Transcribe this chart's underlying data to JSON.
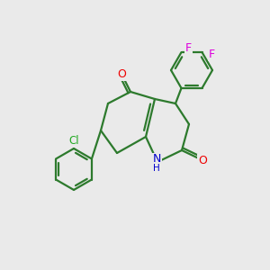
{
  "background_color": "#eaeaea",
  "bond_color": "#2d7a2d",
  "atom_colors": {
    "O": "#ee0000",
    "N": "#0000cc",
    "Cl": "#22aa22",
    "F": "#dd00dd"
  },
  "figsize": [
    3.0,
    3.0
  ],
  "dpi": 100
}
